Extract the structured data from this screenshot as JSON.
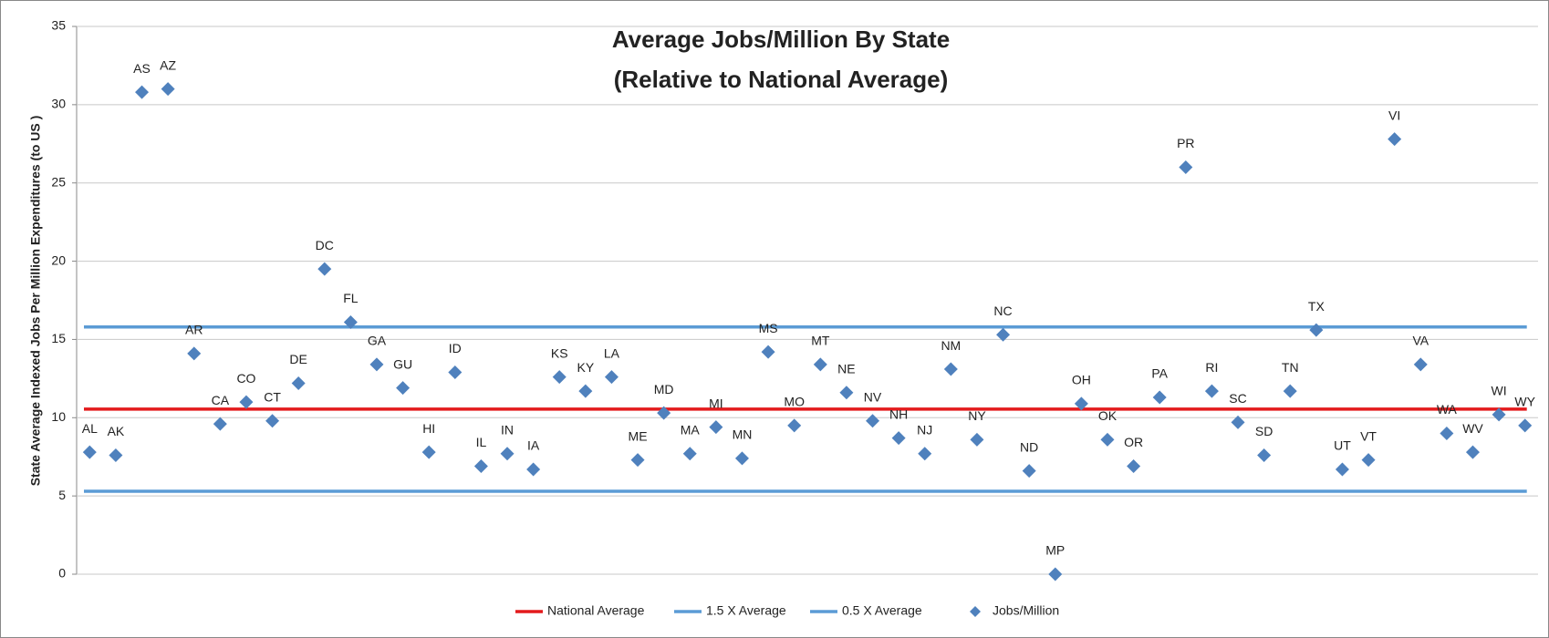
{
  "chart_data": {
    "type": "scatter",
    "title": "Average Jobs/Million By State",
    "subtitle": "(Relative to National Average)",
    "y_label": "State Average Indexed Jobs Per Million Expenditures (to US )",
    "categories": [
      "AL",
      "AK",
      "AS",
      "AZ",
      "AR",
      "CA",
      "CO",
      "CT",
      "DE",
      "DC",
      "FL",
      "GA",
      "GU",
      "HI",
      "ID",
      "IL",
      "IN",
      "IA",
      "KS",
      "KY",
      "LA",
      "ME",
      "MD",
      "MA",
      "MI",
      "MN",
      "MS",
      "MO",
      "MT",
      "NE",
      "NV",
      "NH",
      "NJ",
      "NM",
      "NY",
      "NC",
      "ND",
      "MP",
      "OH",
      "OK",
      "OR",
      "PA",
      "PR",
      "RI",
      "SC",
      "SD",
      "TN",
      "TX",
      "UT",
      "VT",
      "VI",
      "VA",
      "WA",
      "WV",
      "WI",
      "WY"
    ],
    "series": [
      {
        "name": "National Average",
        "kind": "hline",
        "color": "#e31a1c",
        "value": 10.55
      },
      {
        "name": "1.5 X Average",
        "kind": "hline",
        "color": "#5b9bd5",
        "value": 15.8
      },
      {
        "name": "0.5 X Average",
        "kind": "hline",
        "color": "#5b9bd5",
        "value": 5.3
      },
      {
        "name": "Jobs/Million",
        "kind": "points",
        "color": "#4f81bd",
        "values": [
          7.8,
          7.6,
          30.8,
          31.0,
          14.1,
          9.6,
          11.0,
          9.8,
          12.2,
          19.5,
          16.1,
          13.4,
          11.9,
          7.8,
          12.9,
          6.9,
          7.7,
          6.7,
          12.6,
          11.7,
          12.6,
          7.3,
          10.3,
          7.7,
          9.4,
          7.4,
          14.2,
          9.5,
          13.4,
          11.6,
          9.8,
          8.7,
          7.7,
          13.1,
          8.6,
          15.3,
          6.6,
          0,
          10.9,
          8.6,
          6.9,
          11.3,
          26.0,
          11.7,
          9.7,
          7.6,
          11.7,
          15.6,
          6.7,
          7.3,
          27.8,
          13.4,
          9.0,
          7.8,
          10.2,
          9.5
        ]
      }
    ],
    "ylim": [
      0,
      35
    ],
    "yticks": [
      0,
      5,
      10,
      15,
      20,
      25,
      30,
      35
    ],
    "grid": true
  }
}
